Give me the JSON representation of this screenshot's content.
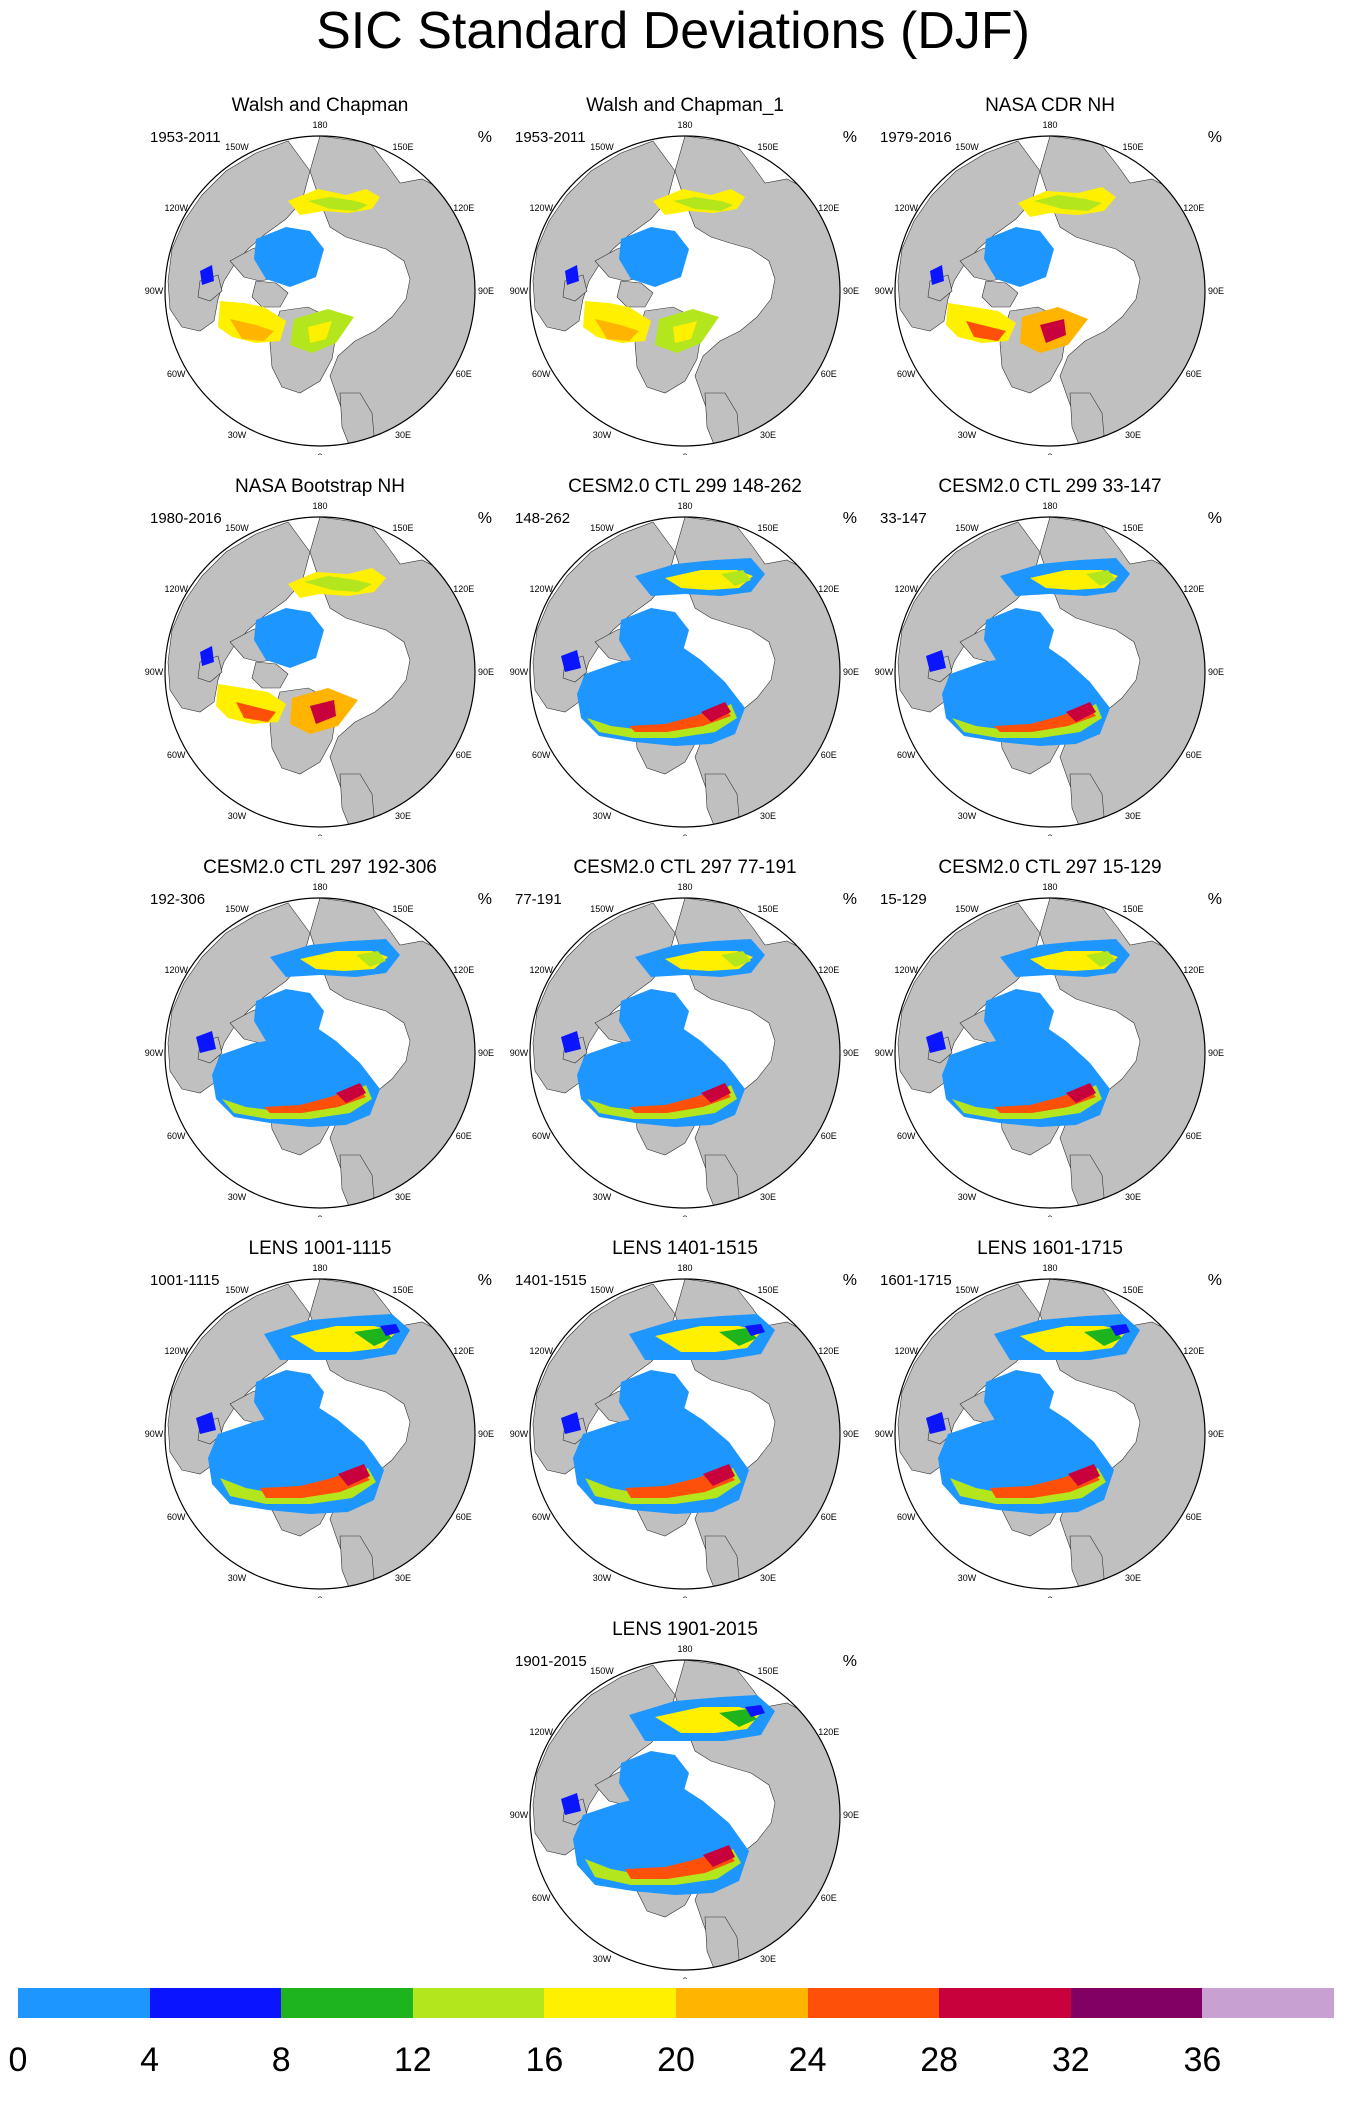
{
  "figure": {
    "title": "SIC Standard Deviations (DJF)",
    "unit": "%"
  },
  "lon_labels": [
    "180",
    "150E",
    "120E",
    "90E",
    "60E",
    "30E",
    "0",
    "30W",
    "60W",
    "90W",
    "120W",
    "150W"
  ],
  "panels": [
    {
      "title": "Walsh and Chapman",
      "years": "1953-2011",
      "style": "obs"
    },
    {
      "title": "Walsh and Chapman_1",
      "years": "1953-2011",
      "style": "obs"
    },
    {
      "title": "NASA CDR NH",
      "years": "1979-2016",
      "style": "sat"
    },
    {
      "title": "NASA Bootstrap NH",
      "years": "1980-2016",
      "style": "sat"
    },
    {
      "title": "CESM2.0 CTL 299 148-262",
      "years": "148-262",
      "style": "model"
    },
    {
      "title": "CESM2.0 CTL 299 33-147",
      "years": "33-147",
      "style": "model"
    },
    {
      "title": "CESM2.0 CTL 297 192-306",
      "years": "192-306",
      "style": "model"
    },
    {
      "title": "CESM2.0 CTL 297 77-191",
      "years": "77-191",
      "style": "model"
    },
    {
      "title": "CESM2.0 CTL 297 15-129",
      "years": "15-129",
      "style": "model"
    },
    {
      "title": "LENS 1001-1115",
      "years": "1001-1115",
      "style": "lens"
    },
    {
      "title": "LENS 1401-1515",
      "years": "1401-1515",
      "style": "lens"
    },
    {
      "title": "LENS 1601-1715",
      "years": "1601-1715",
      "style": "lens"
    },
    {
      "title": "LENS 1901-2015",
      "years": "1901-2015",
      "style": "lens"
    }
  ],
  "colorbar": {
    "colors": [
      "#1e96ff",
      "#0a14ff",
      "#1eb41e",
      "#b4e61e",
      "#fff000",
      "#ffb400",
      "#ff500a",
      "#c8003c",
      "#820064",
      "#c8a0d2"
    ],
    "tick_labels": [
      "0",
      "4",
      "8",
      "12",
      "16",
      "20",
      "24",
      "28",
      "32",
      "36"
    ]
  },
  "colors": {
    "land": "#c0c0c0",
    "ocean": "#ffffff",
    "coast": "#333333"
  }
}
